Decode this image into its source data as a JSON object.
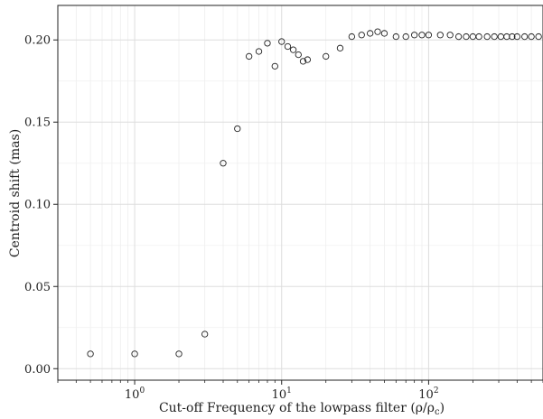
{
  "chart_data": {
    "type": "scatter",
    "title": "",
    "xlabel": "Cut-off Frequency of the lowpass filter (ρ/ρ",
    "xlabel_sub": "c",
    "xlabel_close": ")",
    "ylabel": "Centroid shift (mas)",
    "x_scale": "log",
    "xlim": [
      0.3,
      600
    ],
    "ylim": [
      -0.007,
      0.221
    ],
    "grid": true,
    "x_ticks": [
      {
        "value": 1,
        "base": "10",
        "exp": "0"
      },
      {
        "value": 10,
        "base": "10",
        "exp": "1"
      },
      {
        "value": 100,
        "base": "10",
        "exp": "2"
      }
    ],
    "y_ticks": [
      {
        "value": 0.0,
        "label": "0.00"
      },
      {
        "value": 0.05,
        "label": "0.05"
      },
      {
        "value": 0.1,
        "label": "0.10"
      },
      {
        "value": 0.15,
        "label": "0.15"
      },
      {
        "value": 0.2,
        "label": "0.20"
      }
    ],
    "points": [
      [
        0.5,
        0.009
      ],
      [
        1,
        0.009
      ],
      [
        2,
        0.009
      ],
      [
        3,
        0.021
      ],
      [
        4,
        0.125
      ],
      [
        5,
        0.146
      ],
      [
        6,
        0.19
      ],
      [
        7,
        0.193
      ],
      [
        8,
        0.198
      ],
      [
        9,
        0.184
      ],
      [
        10,
        0.199
      ],
      [
        11,
        0.196
      ],
      [
        12,
        0.194
      ],
      [
        13,
        0.191
      ],
      [
        14,
        0.187
      ],
      [
        15,
        0.188
      ],
      [
        20,
        0.19
      ],
      [
        25,
        0.195
      ],
      [
        30,
        0.202
      ],
      [
        35,
        0.203
      ],
      [
        40,
        0.204
      ],
      [
        45,
        0.205
      ],
      [
        50,
        0.204
      ],
      [
        60,
        0.202
      ],
      [
        70,
        0.202
      ],
      [
        80,
        0.203
      ],
      [
        90,
        0.203
      ],
      [
        100,
        0.203
      ],
      [
        120,
        0.203
      ],
      [
        140,
        0.203
      ],
      [
        160,
        0.202
      ],
      [
        180,
        0.202
      ],
      [
        200,
        0.202
      ],
      [
        220,
        0.202
      ],
      [
        250,
        0.202
      ],
      [
        280,
        0.202
      ],
      [
        310,
        0.202
      ],
      [
        340,
        0.202
      ],
      [
        370,
        0.202
      ],
      [
        400,
        0.202
      ],
      [
        450,
        0.202
      ],
      [
        500,
        0.202
      ],
      [
        560,
        0.202
      ]
    ]
  }
}
